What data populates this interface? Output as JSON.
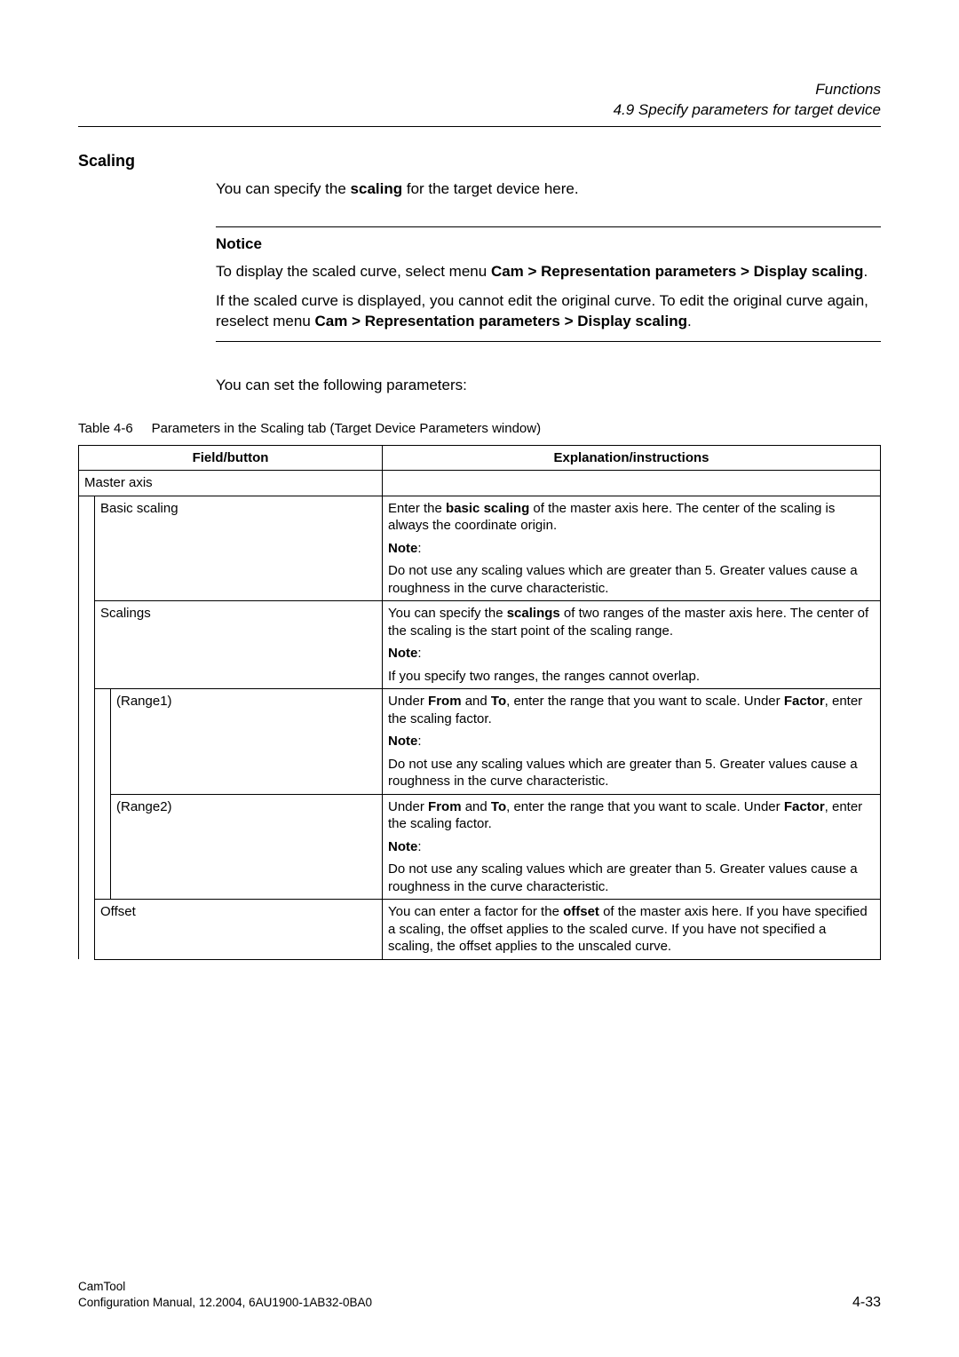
{
  "header": {
    "book": "Functions",
    "section": "4.9 Specify parameters for target device"
  },
  "heading": "Scaling",
  "intro_pre": "You can specify the ",
  "intro_bold": "scaling",
  "intro_post": " for the target device here.",
  "notice": {
    "title": "Notice",
    "p1_pre": "To display the scaled curve, select menu ",
    "p1_bold": "Cam > Representation parameters > Display scaling",
    "p1_post": ".",
    "p2_pre": "If the scaled curve is displayed, you cannot edit the original curve. To edit the original curve again, reselect menu ",
    "p2_bold": "Cam > Representation parameters > Display scaling",
    "p2_post": "."
  },
  "subpara": "You can set the following parameters:",
  "table": {
    "caption_label": "Table 4-6",
    "caption_text": "Parameters in the Scaling tab (Target Device Parameters window)",
    "header_field": "Field/button",
    "header_expl": "Explanation/instructions",
    "master_axis": "Master axis",
    "basic_scaling": {
      "label": "Basic scaling",
      "p1_pre": "Enter the ",
      "p1_bold": "basic scaling",
      "p1_post": " of the master axis here. The center of the scaling is always the coordinate origin.",
      "note_label": "Note",
      "note_colon": ":",
      "p2": "Do not use any scaling values which are greater than 5. Greater values cause a roughness in the curve characteristic."
    },
    "scalings": {
      "label": "Scalings",
      "p1_pre": "You can specify the ",
      "p1_bold": "scalings",
      "p1_post": " of two ranges of the master axis here. The center of the scaling is the start point of the scaling range.",
      "note_label": "Note",
      "note_colon": ":",
      "p2": "If you specify two ranges, the ranges cannot overlap."
    },
    "range1": {
      "label": "(Range1)",
      "p1_pre": "Under ",
      "p1_b1": "From",
      "p1_mid1": " and ",
      "p1_b2": "To",
      "p1_mid2": ", enter the range that you want to scale. Under ",
      "p1_b3": "Factor",
      "p1_post": ", enter the scaling factor.",
      "note_label": "Note",
      "note_colon": ":",
      "p2": "Do not use any scaling values which are greater than 5. Greater values cause a roughness in the curve characteristic."
    },
    "range2": {
      "label": "(Range2)",
      "p1_pre": "Under ",
      "p1_b1": "From",
      "p1_mid1": " and ",
      "p1_b2": "To",
      "p1_mid2": ", enter the range that you want to scale. Under ",
      "p1_b3": "Factor",
      "p1_post": ", enter the scaling factor.",
      "note_label": "Note",
      "note_colon": ":",
      "p2": "Do not use any scaling values which are greater than 5. Greater values cause a roughness in the curve characteristic."
    },
    "offset": {
      "label": "Offset",
      "p1_pre": "You can enter a factor for the ",
      "p1_bold": "offset",
      "p1_post": " of the master axis here. If you have specified a scaling, the offset applies to the scaled curve. If you have not specified a scaling, the offset applies to the unscaled curve."
    }
  },
  "footer": {
    "line1": "CamTool",
    "line2": "Configuration Manual, 12.2004, 6AU1900-1AB32-0BA0",
    "page": "4-33"
  }
}
